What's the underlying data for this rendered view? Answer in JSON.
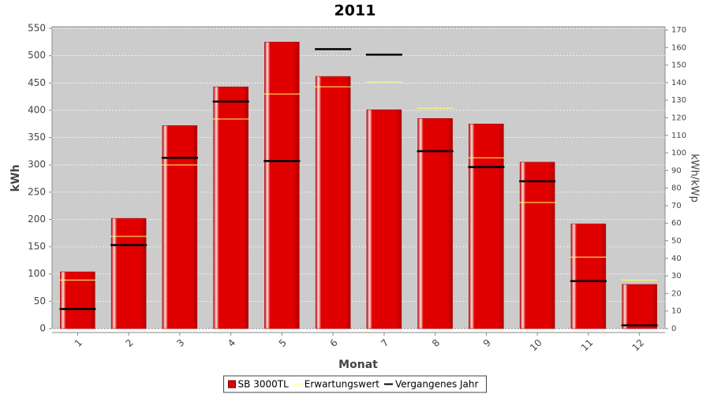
{
  "chart_data": {
    "type": "bar",
    "title": "2011",
    "x_label": "Monat",
    "y_label": "kWh",
    "y2_label": "kWh/kWp",
    "categories": [
      "1",
      "2",
      "3",
      "4",
      "5",
      "6",
      "7",
      "8",
      "9",
      "10",
      "11",
      "12"
    ],
    "series": [
      {
        "name": "SB 3000TL",
        "style": "bar",
        "color": "#e00000",
        "values": [
          104,
          202,
          372,
          443,
          525,
          462,
          401,
          385,
          375,
          305,
          192,
          81
        ]
      },
      {
        "name": "Erwartungswert",
        "style": "tick",
        "color": "#ffff66",
        "values": [
          89,
          169,
          300,
          384,
          430,
          443,
          452,
          404,
          313,
          231,
          131,
          89
        ]
      },
      {
        "name": "Vergangenes Jahr",
        "style": "tick",
        "color": "#000000",
        "values": [
          36,
          153,
          313,
          416,
          307,
          512,
          502,
          325,
          296,
          270,
          87,
          6
        ]
      }
    ],
    "ylim": [
      0,
      553
    ],
    "yticks": [
      0,
      50,
      100,
      150,
      200,
      250,
      300,
      350,
      400,
      450,
      500,
      550
    ],
    "y2lim": [
      0,
      171.8
    ],
    "y2ticks": [
      0,
      10,
      20,
      30,
      40,
      50,
      60,
      70,
      80,
      90,
      100,
      110,
      120,
      130,
      140,
      150,
      160,
      170
    ],
    "grid": true,
    "legend": "bottom"
  }
}
